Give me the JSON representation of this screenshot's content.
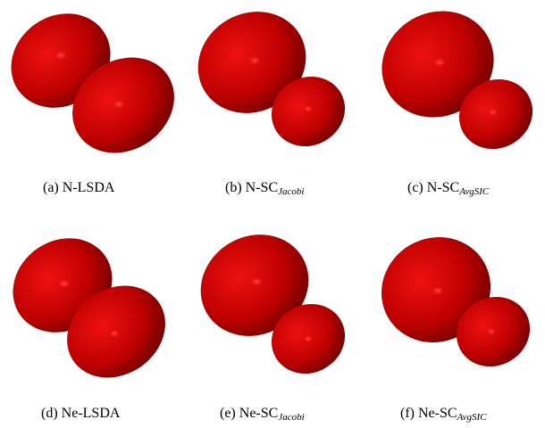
{
  "panels": [
    {
      "label": "(a)",
      "name": "N-LSDA",
      "sub": ""
    },
    {
      "label": "(b)",
      "name": "N-SC",
      "sub": "Jacobi"
    },
    {
      "label": "(c)",
      "name": "N-SC",
      "sub": "AvgSIC"
    },
    {
      "label": "(d)",
      "name": "Ne-LSDA",
      "sub": ""
    },
    {
      "label": "(e)",
      "name": "Ne-SC",
      "sub": "Jacobi"
    },
    {
      "label": "(f)",
      "name": "Ne-SC",
      "sub": "AvgSIC"
    }
  ],
  "colors": {
    "lobe": "#cc0000",
    "lobe_dark": "#5a0000",
    "highlight": "#ff3333"
  }
}
